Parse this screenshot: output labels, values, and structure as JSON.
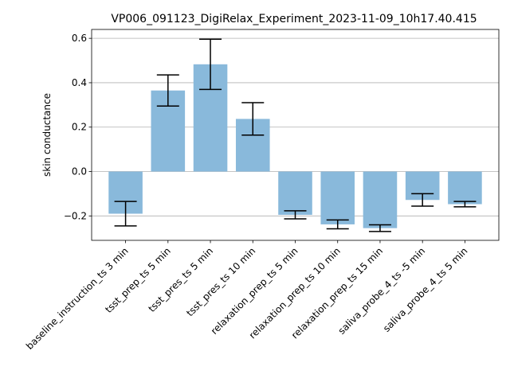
{
  "chart_data": {
    "type": "bar",
    "title": "VP006_091123_DigiRelax_Experiment_2023-11-09_10h17.40.415",
    "xlabel": "",
    "ylabel": "skin conductance",
    "categories": [
      "baseline_instruction_ts 3 min",
      "tsst_prep_ts 5 min",
      "tsst_pres_ts 5 min",
      "tsst_pres_ts 10 min",
      "relaxation_prep_ts 5 min",
      "relaxation_prep_ts 10 min",
      "relaxation_prep_ts 15 min",
      "saliva_probe_4_ts -5 min",
      "saliva_probe_4_ts 5 min"
    ],
    "values": [
      -0.19,
      0.365,
      0.483,
      0.237,
      -0.195,
      -0.238,
      -0.255,
      -0.128,
      -0.147
    ],
    "error": [
      0.055,
      0.07,
      0.113,
      0.073,
      0.018,
      0.02,
      0.015,
      0.028,
      0.012
    ],
    "ylim": [
      -0.31,
      0.64
    ],
    "yticks": [
      -0.2,
      0.0,
      0.2,
      0.4,
      0.6
    ],
    "ytick_labels": [
      "−0.2",
      "0.0",
      "0.2",
      "0.4",
      "0.6"
    ],
    "grid": "horizontal",
    "bar_color": "#89b9db",
    "error_color": "#000000"
  }
}
